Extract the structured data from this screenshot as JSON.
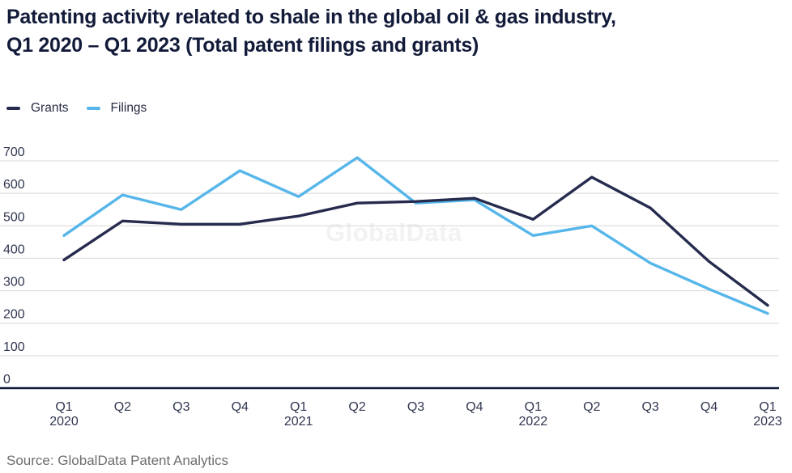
{
  "header": {
    "title_lines": [
      "Patenting activity related to shale in the global oil & gas industry,",
      "Q1 2020 – Q1 2023 (Total patent filings and grants)"
    ]
  },
  "watermark": "GlobalData",
  "source": "Source: GlobalData Patent Analytics",
  "colors": {
    "title": "#131b3a",
    "grants_line": "#262b4e",
    "filings_line": "#56b6ea",
    "grid": "#d8d8d8",
    "zero_axis": "#131b3a",
    "tick_label": "#303650",
    "source_text": "#6e6e6e",
    "watermark": "#f2f2f2"
  },
  "chart_data": {
    "type": "line",
    "title": "Patenting activity related to shale in the global oil & gas industry, Q1 2020 – Q1 2023 (Total patent filings and grants)",
    "xlabel": "",
    "ylabel": "",
    "categories": [
      "Q1 2020",
      "Q2 2020",
      "Q3 2020",
      "Q4 2020",
      "Q1 2021",
      "Q2 2021",
      "Q3 2021",
      "Q4 2021",
      "Q1 2022",
      "Q2 2022",
      "Q3 2022",
      "Q4 2022",
      "Q1 2023"
    ],
    "x_tick_lines": [
      [
        "Q1",
        "2020"
      ],
      [
        "Q2"
      ],
      [
        "Q3"
      ],
      [
        "Q4"
      ],
      [
        "Q1",
        "2021"
      ],
      [
        "Q2"
      ],
      [
        "Q3"
      ],
      [
        "Q4"
      ],
      [
        "Q1",
        "2022"
      ],
      [
        "Q2"
      ],
      [
        "Q3"
      ],
      [
        "Q4"
      ],
      [
        "Q1",
        "2023"
      ]
    ],
    "series": [
      {
        "name": "Grants",
        "color": "#262b4e",
        "values": [
          395,
          515,
          505,
          505,
          530,
          570,
          575,
          585,
          520,
          650,
          555,
          390,
          255
        ]
      },
      {
        "name": "Filings",
        "color": "#56b6ea",
        "values": [
          470,
          595,
          550,
          670,
          590,
          710,
          570,
          580,
          470,
          500,
          385,
          305,
          230
        ]
      }
    ],
    "yticks": [
      0,
      100,
      200,
      300,
      400,
      500,
      600,
      700
    ],
    "ylim": [
      0,
      700
    ],
    "grid": "horizontal",
    "legend_position": "top-left"
  }
}
